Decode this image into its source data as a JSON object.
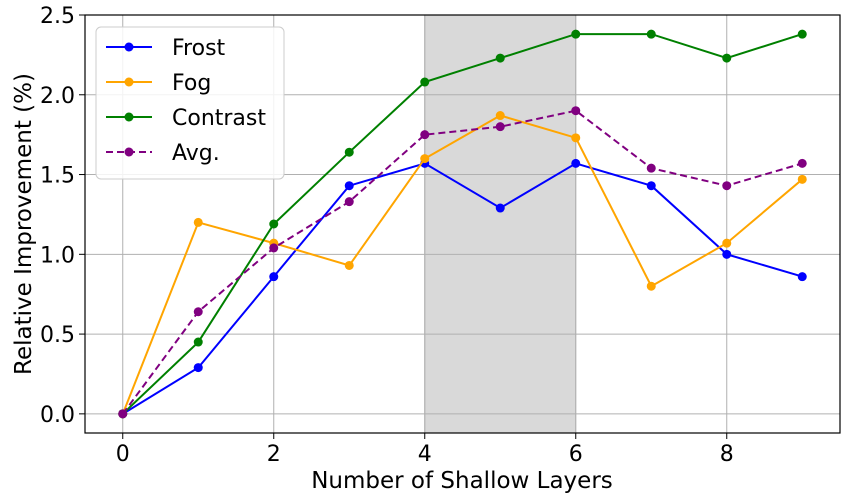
{
  "chart_data": {
    "type": "line",
    "title": "",
    "xlabel": "Number of Shallow Layers",
    "ylabel": "Relative Improvement (%)",
    "x": [
      0,
      1,
      2,
      3,
      4,
      5,
      6,
      7,
      8,
      9
    ],
    "xlim": [
      -0.5,
      9.5
    ],
    "ylim": [
      -0.12,
      2.5
    ],
    "xticks": [
      "0",
      "2",
      "4",
      "6",
      "8"
    ],
    "yticks": [
      "0.0",
      "0.5",
      "1.0",
      "1.5",
      "2.0",
      "2.5"
    ],
    "grid": true,
    "legend_position": "top-left",
    "highlight_span": {
      "x_from": 4,
      "x_to": 6,
      "color": "#d9d9d9"
    },
    "series": [
      {
        "name": "Frost",
        "color": "#0000ff",
        "style": "solid",
        "values": [
          0.0,
          0.29,
          0.86,
          1.43,
          1.57,
          1.29,
          1.57,
          1.43,
          1.0,
          0.86
        ]
      },
      {
        "name": "Fog",
        "color": "#ffa500",
        "style": "solid",
        "values": [
          0.0,
          1.2,
          1.07,
          0.93,
          1.6,
          1.87,
          1.73,
          0.8,
          1.07,
          1.47
        ]
      },
      {
        "name": "Contrast",
        "color": "#008000",
        "style": "solid",
        "values": [
          0.0,
          0.45,
          1.19,
          1.64,
          2.08,
          2.23,
          2.38,
          2.38,
          2.23,
          2.38
        ]
      },
      {
        "name": "Avg.",
        "color": "#800080",
        "style": "dashed",
        "values": [
          0.0,
          0.64,
          1.04,
          1.33,
          1.75,
          1.8,
          1.9,
          1.54,
          1.43,
          1.57
        ]
      }
    ]
  }
}
